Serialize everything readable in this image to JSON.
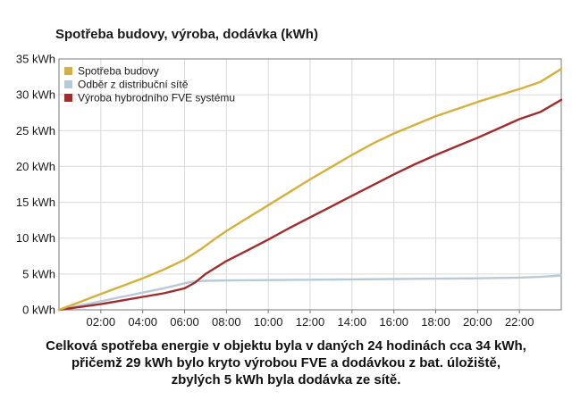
{
  "chart_data": {
    "type": "line",
    "title": "Spotřeba budovy, výroba, dodávka (kWh)",
    "xlabel": "",
    "ylabel": "",
    "x_range": [
      0,
      24
    ],
    "ylim": [
      0,
      35
    ],
    "x_ticks": [
      2,
      4,
      6,
      8,
      10,
      12,
      14,
      16,
      18,
      20,
      22
    ],
    "x_tick_labels": [
      "02:00",
      "04:00",
      "06:00",
      "08:00",
      "10:00",
      "12:00",
      "14:00",
      "16:00",
      "18:00",
      "20:00",
      "22:00"
    ],
    "y_ticks": [
      0,
      5,
      10,
      15,
      20,
      25,
      30,
      35
    ],
    "y_tick_labels": [
      "0 kWh",
      "5 kWh",
      "10 kWh",
      "15 kWh",
      "20 kWh",
      "25 kWh",
      "30 kWh",
      "35 kWh"
    ],
    "grid": true,
    "legend_position": "top-left",
    "series": [
      {
        "name": "Spotřeba budovy",
        "color": "#d4b13c",
        "x": [
          0,
          1,
          2,
          3,
          4,
          5,
          6,
          6.8,
          7.5,
          8,
          9,
          10,
          11,
          12,
          13,
          14,
          15,
          16,
          17,
          18,
          19,
          20,
          21,
          22,
          23,
          24
        ],
        "y": [
          0,
          1.1,
          2.2,
          3.3,
          4.4,
          5.6,
          7.0,
          8.5,
          10.0,
          11.0,
          12.8,
          14.6,
          16.4,
          18.2,
          19.9,
          21.6,
          23.2,
          24.6,
          25.8,
          27.0,
          28.0,
          29.0,
          29.9,
          30.8,
          31.8,
          33.6
        ]
      },
      {
        "name": "Odběr z distribuční sítě",
        "color": "#b9c9d8",
        "x": [
          0,
          1,
          2,
          3,
          4,
          5,
          6,
          6.5,
          7,
          8,
          10,
          12,
          14,
          16,
          18,
          20,
          22,
          23,
          24
        ],
        "y": [
          0,
          0.6,
          1.2,
          1.8,
          2.4,
          3.0,
          3.7,
          4.0,
          4.05,
          4.1,
          4.15,
          4.2,
          4.25,
          4.3,
          4.35,
          4.4,
          4.5,
          4.6,
          4.8
        ]
      },
      {
        "name": "Výroba hybrodního FVE systému",
        "color": "#a22c2c",
        "x": [
          0,
          1,
          2,
          3,
          4,
          5,
          6,
          6.5,
          7,
          8,
          9,
          10,
          11,
          12,
          13,
          14,
          15,
          16,
          17,
          18,
          19,
          20,
          21,
          22,
          23,
          24
        ],
        "y": [
          0,
          0.4,
          0.8,
          1.3,
          1.8,
          2.3,
          3.0,
          3.8,
          5.0,
          6.8,
          8.3,
          9.8,
          11.4,
          12.9,
          14.4,
          15.9,
          17.4,
          18.9,
          20.3,
          21.6,
          22.8,
          24.0,
          25.3,
          26.6,
          27.6,
          29.3
        ]
      }
    ]
  },
  "caption": {
    "line1": "Celková spotřeba energie v objektu byla v daných 24 hodinách cca 34 kWh,",
    "line2": "přičemž 29 kWh bylo kryto výrobou FVE a dodávkou z bat. úložiště,",
    "line3": "zbylých 5 kWh byla dodávka ze sítě."
  }
}
